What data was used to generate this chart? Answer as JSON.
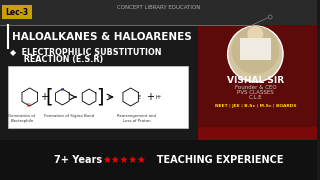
{
  "bg_color": "#1a1a1a",
  "top_bar_color": "#2a2a2a",
  "right_panel_color": "#5c0a0a",
  "lec_bg": "#c8a000",
  "lec_text": "Lec-3",
  "top_center_text": "CONCEPT LIBRARY EDUCATION",
  "title_main": "HALOALKANES & HALOARENES",
  "subtitle_bullet": "◆  ELECTROPHILIC SUBSTITUTION",
  "subtitle_line2": "     REACTION (E.S.R)",
  "vishal_name": "VISHAL SIR",
  "vishal_sub1": "Founder & CEO",
  "vishal_sub2": "PVS CLASSES",
  "vishal_sub3": "C.L.E",
  "neet_line": "NEET | JEE | B.Sc | M.Sc | BOARDS",
  "bottom_left": "7+ Years ",
  "bottom_right": "  TEACHING EXPERIENCE",
  "stars": "★★★★★",
  "diagram_caption1": "Generation of\nElectrophile",
  "diagram_caption2": "Formation of Sigma Bond",
  "diagram_caption3": "Rearrangement and\nLoss of Proton"
}
